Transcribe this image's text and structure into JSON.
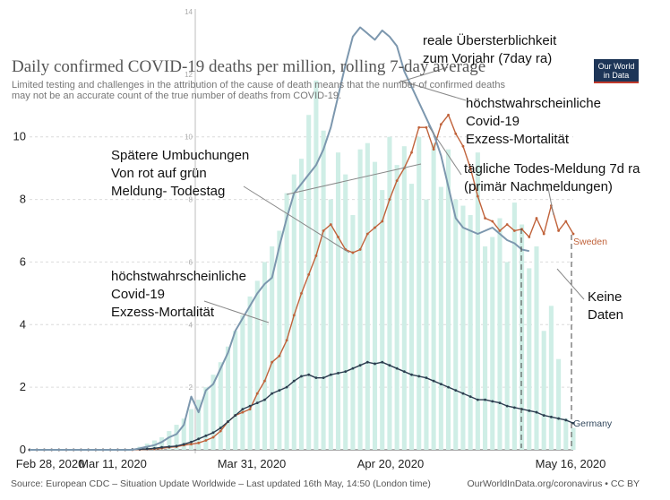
{
  "chart_data": {
    "type": "line",
    "title": "Daily confirmed COVID-19 deaths per million, rolling 7-day average",
    "subtitle_lines": [
      "Limited testing and challenges in the attribution of the cause of death means that the number of confirmed deaths",
      "may not be an accurate count of the true number of deaths from COVID-19."
    ],
    "logo_lines": [
      "Our World",
      "in Data"
    ],
    "x_ticks": [
      "Feb 28, 2020",
      "Mar 11, 2020",
      "Mar 31, 2020",
      "Apr 20, 2020",
      "May 16, 2020"
    ],
    "y_ticks": [
      0,
      2,
      4,
      6,
      8,
      10
    ],
    "secondary_y_ticks": [
      2,
      4,
      6,
      8,
      10,
      12,
      14
    ],
    "ylim": [
      0,
      14
    ],
    "grid": true,
    "series": [
      {
        "name": "Sweden",
        "color": "#c0623a",
        "values": [
          0,
          0,
          0,
          0,
          0,
          0,
          0,
          0,
          0,
          0,
          0,
          0,
          0,
          0,
          0,
          0.01,
          0.02,
          0.03,
          0.05,
          0.08,
          0.1,
          0.15,
          0.18,
          0.22,
          0.3,
          0.4,
          0.6,
          0.9,
          1.1,
          1.2,
          1.3,
          1.8,
          2.2,
          2.8,
          3.0,
          3.5,
          4.3,
          5.0,
          5.6,
          6.2,
          7.0,
          7.2,
          6.8,
          6.4,
          6.3,
          6.4,
          6.9,
          7.1,
          7.3,
          8.0,
          8.6,
          9.0,
          9.5,
          10.3,
          10.3,
          9.6,
          10.4,
          10.7,
          10.1,
          9.7,
          9.0,
          8.1,
          7.4,
          7.3,
          7.0,
          7.2,
          7.0,
          7.05,
          6.8,
          7.4,
          6.9,
          7.8,
          7.0,
          7.3,
          6.9
        ]
      },
      {
        "name": "Germany",
        "color": "#2c3e50",
        "values": [
          0,
          0,
          0,
          0,
          0,
          0,
          0,
          0,
          0,
          0,
          0,
          0,
          0,
          0,
          0.01,
          0.02,
          0.03,
          0.05,
          0.08,
          0.1,
          0.12,
          0.18,
          0.25,
          0.35,
          0.45,
          0.55,
          0.7,
          0.9,
          1.1,
          1.3,
          1.4,
          1.5,
          1.6,
          1.8,
          1.9,
          2.0,
          2.2,
          2.35,
          2.4,
          2.3,
          2.3,
          2.4,
          2.45,
          2.5,
          2.6,
          2.7,
          2.8,
          2.75,
          2.8,
          2.7,
          2.6,
          2.5,
          2.4,
          2.35,
          2.3,
          2.2,
          2.1,
          2.0,
          1.9,
          1.8,
          1.7,
          1.6,
          1.6,
          1.55,
          1.5,
          1.4,
          1.35,
          1.3,
          1.25,
          1.2,
          1.1,
          1.05,
          1.0,
          0.95,
          0.85
        ]
      },
      {
        "name": "",
        "color": "#7c97ae",
        "values": [
          0,
          0,
          0,
          0,
          0,
          0,
          0,
          0,
          0,
          0,
          0,
          0,
          0,
          0,
          0,
          0.05,
          0.1,
          0.15,
          0.25,
          0.4,
          0.5,
          0.8,
          1.7,
          1.2,
          1.9,
          2.1,
          2.6,
          3.1,
          3.8,
          4.2,
          4.6,
          5.0,
          5.3,
          5.5,
          6.5,
          7.4,
          8.2,
          8.5,
          8.8,
          9.1,
          9.6,
          10.3,
          11.3,
          12.3,
          13.2,
          13.5,
          13.3,
          13.1,
          13.4,
          13.2,
          12.9,
          12.1,
          11.6,
          11.1,
          10.6,
          10.1,
          9.4,
          8.4,
          7.4,
          7.1,
          7.0,
          6.9,
          7.0,
          7.1,
          6.9,
          6.7,
          6.6,
          6.4,
          6.35
        ]
      }
    ],
    "bars": {
      "color": "#cfeee6",
      "values": [
        0,
        0,
        0,
        0,
        0,
        0,
        0,
        0,
        0,
        0,
        0,
        0,
        0,
        0,
        0,
        0.1,
        0.2,
        0.3,
        0.4,
        0.6,
        0.8,
        1.0,
        1.3,
        1.6,
        2.0,
        2.4,
        2.8,
        3.3,
        3.8,
        4.3,
        4.9,
        5.4,
        6.0,
        6.5,
        7.0,
        8.2,
        8.8,
        9.3,
        10.7,
        11.8,
        10.2,
        8.0,
        9.5,
        8.8,
        7.5,
        9.6,
        9.8,
        9.2,
        8.3,
        10.0,
        9.1,
        9.7,
        8.5,
        10.0,
        8.0,
        9.8,
        8.4,
        9.6,
        8.0,
        7.8,
        7.5,
        9.5,
        6.5,
        6.8,
        7.4,
        6.0,
        7.9,
        7.2,
        5.8,
        6.5,
        3.8,
        4.6,
        2.9,
        1.0,
        0.7
      ]
    },
    "annotations": [
      {
        "lines": [
          "reale Übersterblichkeit",
          "zum Vorjahr (7day ra)"
        ]
      },
      {
        "lines": [
          "höchstwahrscheinliche",
          "Covid-19",
          "Exzess-Mortalität"
        ]
      },
      {
        "lines": [
          "Spätere Umbuchungen",
          "Von rot auf grün",
          "Meldung- Todestag"
        ]
      },
      {
        "lines": [
          "tägliche Todes-Meldung 7d ra",
          "(primär Nachmeldungen)"
        ]
      },
      {
        "lines": [
          "höchstwahrscheinliche",
          "Covid-19",
          "Exzess-Mortalität"
        ]
      },
      {
        "lines": [
          "Keine",
          "Daten"
        ]
      }
    ],
    "source": "Source: European CDC – Situation Update Worldwide – Last updated 16th May, 14:50 (London time)",
    "credit": "OurWorldInData.org/coronavirus • CC BY"
  }
}
